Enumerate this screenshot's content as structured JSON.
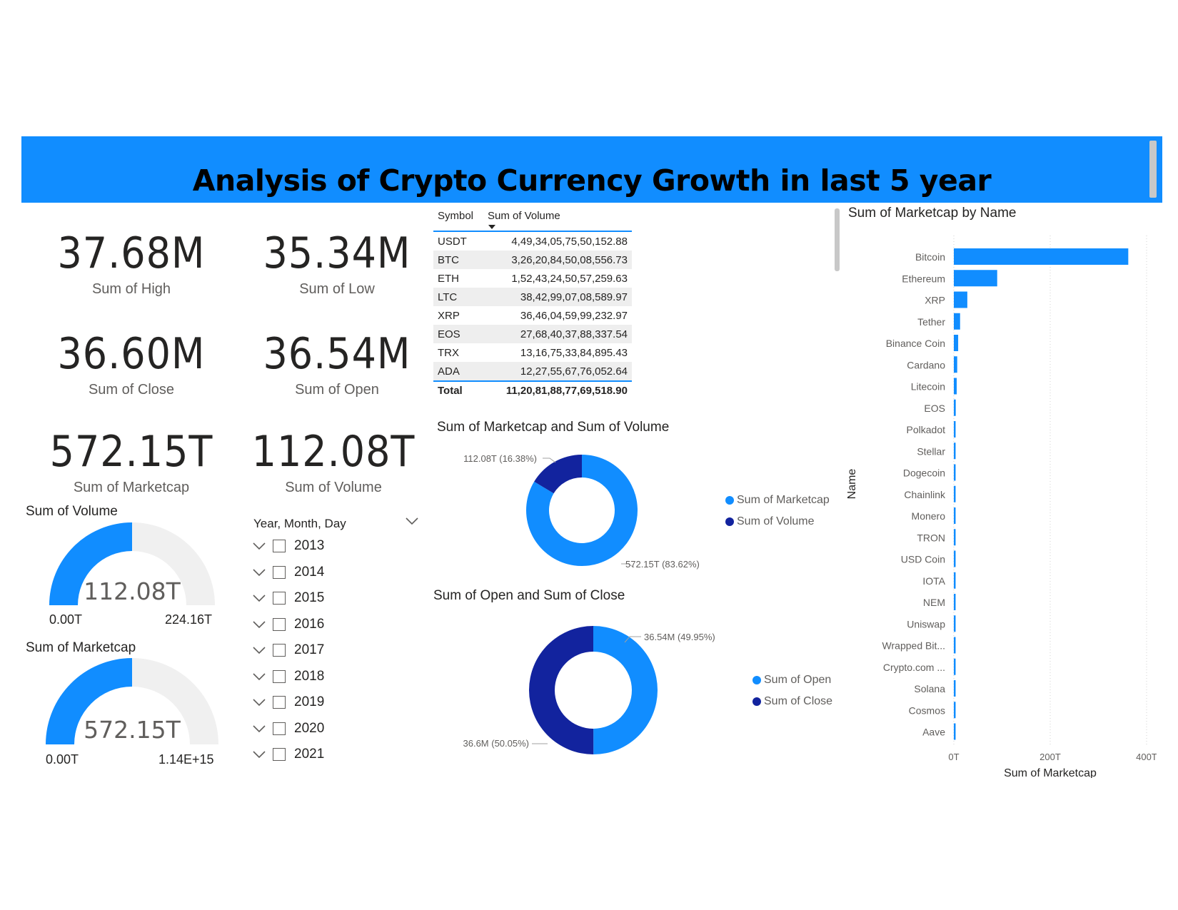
{
  "header": {
    "title": "Analysis of Crypto Currency Growth in last 5 year"
  },
  "kpis": [
    {
      "value": "37.68M",
      "label": "Sum of High"
    },
    {
      "value": "35.34M",
      "label": "Sum of Low"
    },
    {
      "value": "36.60M",
      "label": "Sum of Close"
    },
    {
      "value": "36.54M",
      "label": "Sum of Open"
    },
    {
      "value": "572.15T",
      "label": "Sum of Marketcap"
    },
    {
      "value": "112.08T",
      "label": "Sum of Volume"
    }
  ],
  "gauges": [
    {
      "title": "Sum of Volume",
      "value_label": "112.08T",
      "min_label": "0.00T",
      "max_label": "224.16T",
      "fraction": 0.5
    },
    {
      "title": "Sum of Marketcap",
      "value_label": "572.15T",
      "min_label": "0.00T",
      "max_label": "1.14E+15",
      "fraction": 0.5
    }
  ],
  "slicer": {
    "title": "Year, Month, Day",
    "years": [
      "2013",
      "2014",
      "2015",
      "2016",
      "2017",
      "2018",
      "2019",
      "2020",
      "2021"
    ]
  },
  "table": {
    "columns": [
      "Symbol",
      "Sum of Volume"
    ],
    "rows": [
      {
        "symbol": "USDT",
        "volume": "4,49,34,05,75,50,152.88"
      },
      {
        "symbol": "BTC",
        "volume": "3,26,20,84,50,08,556.73"
      },
      {
        "symbol": "ETH",
        "volume": "1,52,43,24,50,57,259.63"
      },
      {
        "symbol": "LTC",
        "volume": "38,42,99,07,08,589.97"
      },
      {
        "symbol": "XRP",
        "volume": "36,46,04,59,99,232.97"
      },
      {
        "symbol": "EOS",
        "volume": "27,68,40,37,88,337.54"
      },
      {
        "symbol": "TRX",
        "volume": "13,16,75,33,84,895.43"
      },
      {
        "symbol": "ADA",
        "volume": "12,27,55,67,76,052.64"
      }
    ],
    "total_label": "Total",
    "total_value": "11,20,81,88,77,69,518.90"
  },
  "colors": {
    "primary": "#118dff",
    "secondary": "#12239e",
    "track": "#f0f0f0"
  },
  "chart_data": [
    {
      "type": "pie",
      "title": "Sum of Marketcap and Sum of Volume",
      "labels": [
        "Sum of Marketcap",
        "Sum of Volume"
      ],
      "values": [
        572.15,
        112.08
      ],
      "data_labels": [
        "572.15T (83.62%)",
        "112.08T (16.38%)"
      ],
      "legend": "right"
    },
    {
      "type": "pie",
      "title": "Sum of Open and Sum of Close",
      "labels": [
        "Sum of Open",
        "Sum of Close"
      ],
      "values": [
        36.54,
        36.6
      ],
      "data_labels": [
        "36.54M (49.95%)",
        "36.6M (50.05%)"
      ],
      "legend": "right"
    },
    {
      "type": "bar",
      "orientation": "horizontal",
      "title": "Sum of Marketcap by Name",
      "xlabel": "Sum of Marketcap",
      "ylabel": "Name",
      "categories": [
        "Bitcoin",
        "Ethereum",
        "XRP",
        "Tether",
        "Binance Coin",
        "Cardano",
        "Litecoin",
        "EOS",
        "Polkadot",
        "Stellar",
        "Dogecoin",
        "Chainlink",
        "Monero",
        "TRON",
        "USD Coin",
        "IOTA",
        "NEM",
        "Uniswap",
        "Wrapped Bit...",
        "Crypto.com ...",
        "Solana",
        "Cosmos",
        "Aave"
      ],
      "values": [
        362,
        90,
        28,
        13,
        9,
        7,
        6,
        4,
        3,
        2.5,
        2.2,
        2,
        1.8,
        1.6,
        1.4,
        1.2,
        1.1,
        1,
        0.9,
        0.8,
        0.7,
        0.6,
        0.5
      ],
      "xticks": [
        "0T",
        "200T",
        "400T"
      ],
      "xlim": [
        0,
        400
      ]
    }
  ]
}
